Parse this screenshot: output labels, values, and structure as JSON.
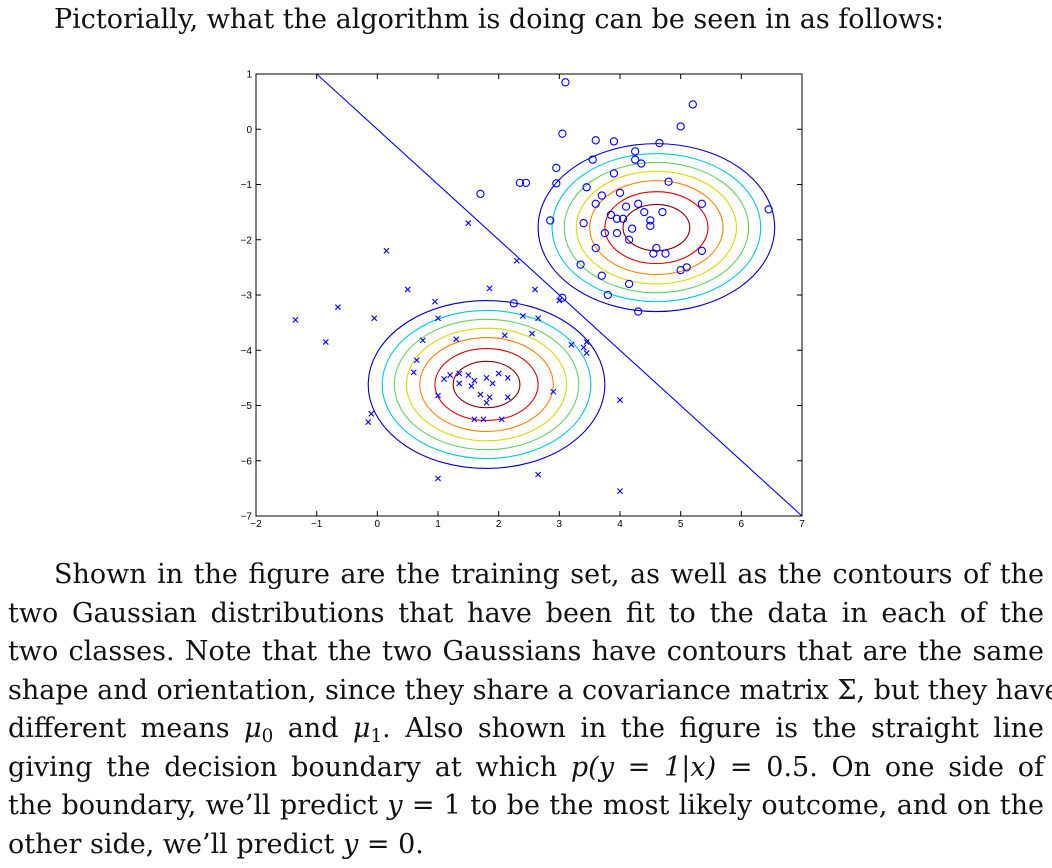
{
  "intro_text": "Pictorially, what the algorithm is doing can be seen in as follows:",
  "paragraph": {
    "l1": "Shown in the figure are the training set, as well as the contours of the",
    "l2": "two Gaussian distributions that have been fit to the data in each of the",
    "l3": "two classes. Note that the two Gaussians have contours that are the same",
    "l4": "shape and orientation, since they share a covariance matrix Σ, but they have",
    "l5a": "different means ",
    "mu": "μ",
    "sub0": "0",
    "l5b": " and ",
    "sub1": "1",
    "l5c": ". Also shown in the figure is the straight line",
    "l6a": "giving the decision boundary at which ",
    "l6expr": "p(y = 1|x)",
    "l6b": " = 0.5. On one side of",
    "l7a": "the boundary, we’ll predict ",
    "y": "y",
    "eq1": " = 1",
    "l7b": " to be the most likely outcome, and on the",
    "l8a": "other side, we’ll predict ",
    "eq0": " = 0",
    "l8b": "."
  },
  "chart_data": {
    "type": "scatter",
    "xlim": [
      -2,
      7
    ],
    "ylim": [
      -7,
      1
    ],
    "xticks": [
      "-2",
      "-1",
      "0",
      "1",
      "2",
      "3",
      "4",
      "5",
      "6",
      "7"
    ],
    "yticks": [
      "1",
      "0",
      "-1",
      "-2",
      "-3",
      "-4",
      "-5",
      "-6",
      "-7"
    ],
    "grid": false,
    "series": [
      {
        "marker": "o",
        "color": "#0000ff",
        "points": [
          [
            3.1,
            0.85
          ],
          [
            5.2,
            0.45
          ],
          [
            5.0,
            0.05
          ],
          [
            3.05,
            -0.08
          ],
          [
            3.6,
            -0.2
          ],
          [
            3.9,
            -0.22
          ],
          [
            4.65,
            -0.25
          ],
          [
            4.25,
            -0.4
          ],
          [
            3.55,
            -0.55
          ],
          [
            4.25,
            -0.55
          ],
          [
            4.35,
            -0.62
          ],
          [
            2.95,
            -0.7
          ],
          [
            3.9,
            -0.8
          ],
          [
            4.8,
            -0.95
          ],
          [
            2.35,
            -0.97
          ],
          [
            2.45,
            -0.97
          ],
          [
            2.95,
            -0.98
          ],
          [
            3.45,
            -1.05
          ],
          [
            4.0,
            -1.15
          ],
          [
            1.7,
            -1.17
          ],
          [
            3.7,
            -1.2
          ],
          [
            4.3,
            -1.35
          ],
          [
            3.6,
            -1.35
          ],
          [
            4.1,
            -1.4
          ],
          [
            5.35,
            -1.35
          ],
          [
            6.45,
            -1.45
          ],
          [
            3.85,
            -1.55
          ],
          [
            4.4,
            -1.5
          ],
          [
            4.7,
            -1.5
          ],
          [
            3.95,
            -1.62
          ],
          [
            4.05,
            -1.62
          ],
          [
            4.5,
            -1.65
          ],
          [
            2.85,
            -1.65
          ],
          [
            3.4,
            -1.7
          ],
          [
            4.5,
            -1.75
          ],
          [
            4.2,
            -1.8
          ],
          [
            3.75,
            -1.88
          ],
          [
            3.95,
            -1.88
          ],
          [
            4.15,
            -2.0
          ],
          [
            3.6,
            -2.15
          ],
          [
            4.6,
            -2.15
          ],
          [
            4.75,
            -2.25
          ],
          [
            5.35,
            -2.2
          ],
          [
            4.55,
            -2.25
          ],
          [
            3.35,
            -2.45
          ],
          [
            5.1,
            -2.5
          ],
          [
            5.0,
            -2.55
          ],
          [
            3.7,
            -2.65
          ],
          [
            4.15,
            -2.8
          ],
          [
            3.05,
            -3.05
          ],
          [
            3.8,
            -3.0
          ],
          [
            2.25,
            -3.15
          ],
          [
            4.3,
            -3.3
          ]
        ]
      },
      {
        "marker": "x",
        "color": "#0000ff",
        "points": [
          [
            1.5,
            -1.7
          ],
          [
            0.15,
            -2.2
          ],
          [
            2.3,
            -2.38
          ],
          [
            1.85,
            -2.88
          ],
          [
            0.5,
            -2.9
          ],
          [
            2.6,
            -2.9
          ],
          [
            0.95,
            -3.12
          ],
          [
            3.0,
            -3.1
          ],
          [
            -0.65,
            -3.22
          ],
          [
            -0.05,
            -3.42
          ],
          [
            1.0,
            -3.42
          ],
          [
            2.4,
            -3.38
          ],
          [
            -1.35,
            -3.45
          ],
          [
            2.65,
            -3.42
          ],
          [
            2.1,
            -3.73
          ],
          [
            0.75,
            -3.82
          ],
          [
            -0.85,
            -3.85
          ],
          [
            2.55,
            -3.7
          ],
          [
            3.2,
            -3.9
          ],
          [
            1.3,
            -3.8
          ],
          [
            3.45,
            -3.85
          ],
          [
            3.4,
            -3.95
          ],
          [
            3.45,
            -4.05
          ],
          [
            0.65,
            -4.18
          ],
          [
            0.6,
            -4.4
          ],
          [
            1.2,
            -4.45
          ],
          [
            1.1,
            -4.52
          ],
          [
            1.35,
            -4.42
          ],
          [
            1.5,
            -4.45
          ],
          [
            2.0,
            -4.42
          ],
          [
            1.6,
            -4.55
          ],
          [
            1.8,
            -4.5
          ],
          [
            2.15,
            -4.5
          ],
          [
            1.35,
            -4.6
          ],
          [
            1.55,
            -4.65
          ],
          [
            1.9,
            -4.6
          ],
          [
            1.7,
            -4.8
          ],
          [
            1.85,
            -4.85
          ],
          [
            2.15,
            -4.85
          ],
          [
            1.0,
            -4.82
          ],
          [
            2.9,
            -4.75
          ],
          [
            4.0,
            -4.9
          ],
          [
            1.8,
            -4.95
          ],
          [
            1.6,
            -5.25
          ],
          [
            1.75,
            -5.25
          ],
          [
            2.05,
            -5.25
          ],
          [
            -0.1,
            -5.15
          ],
          [
            -0.15,
            -5.3
          ],
          [
            1.0,
            -6.32
          ],
          [
            2.65,
            -6.25
          ],
          [
            4.0,
            -6.55
          ]
        ]
      }
    ],
    "contours": [
      {
        "center": [
          1.8,
          -4.62
        ],
        "radii": [
          [
            0.55,
            0.42
          ],
          [
            0.85,
            0.65
          ],
          [
            1.1,
            0.85
          ],
          [
            1.32,
            1.02
          ],
          [
            1.52,
            1.18
          ],
          [
            1.72,
            1.34
          ],
          [
            1.95,
            1.52
          ]
        ]
      },
      {
        "center": [
          4.6,
          -1.78
        ],
        "radii": [
          [
            0.55,
            0.42
          ],
          [
            0.85,
            0.65
          ],
          [
            1.1,
            0.85
          ],
          [
            1.32,
            1.02
          ],
          [
            1.52,
            1.18
          ],
          [
            1.72,
            1.34
          ],
          [
            1.95,
            1.52
          ]
        ]
      }
    ],
    "contour_colors": [
      "#800000",
      "#e00000",
      "#ff7f00",
      "#d8d800",
      "#60d060",
      "#00c8e0",
      "#0000c0"
    ],
    "decision_boundary": [
      [
        -1.0,
        1.0
      ],
      [
        7.0,
        -7.0
      ]
    ],
    "line_color": "#0000ff"
  }
}
